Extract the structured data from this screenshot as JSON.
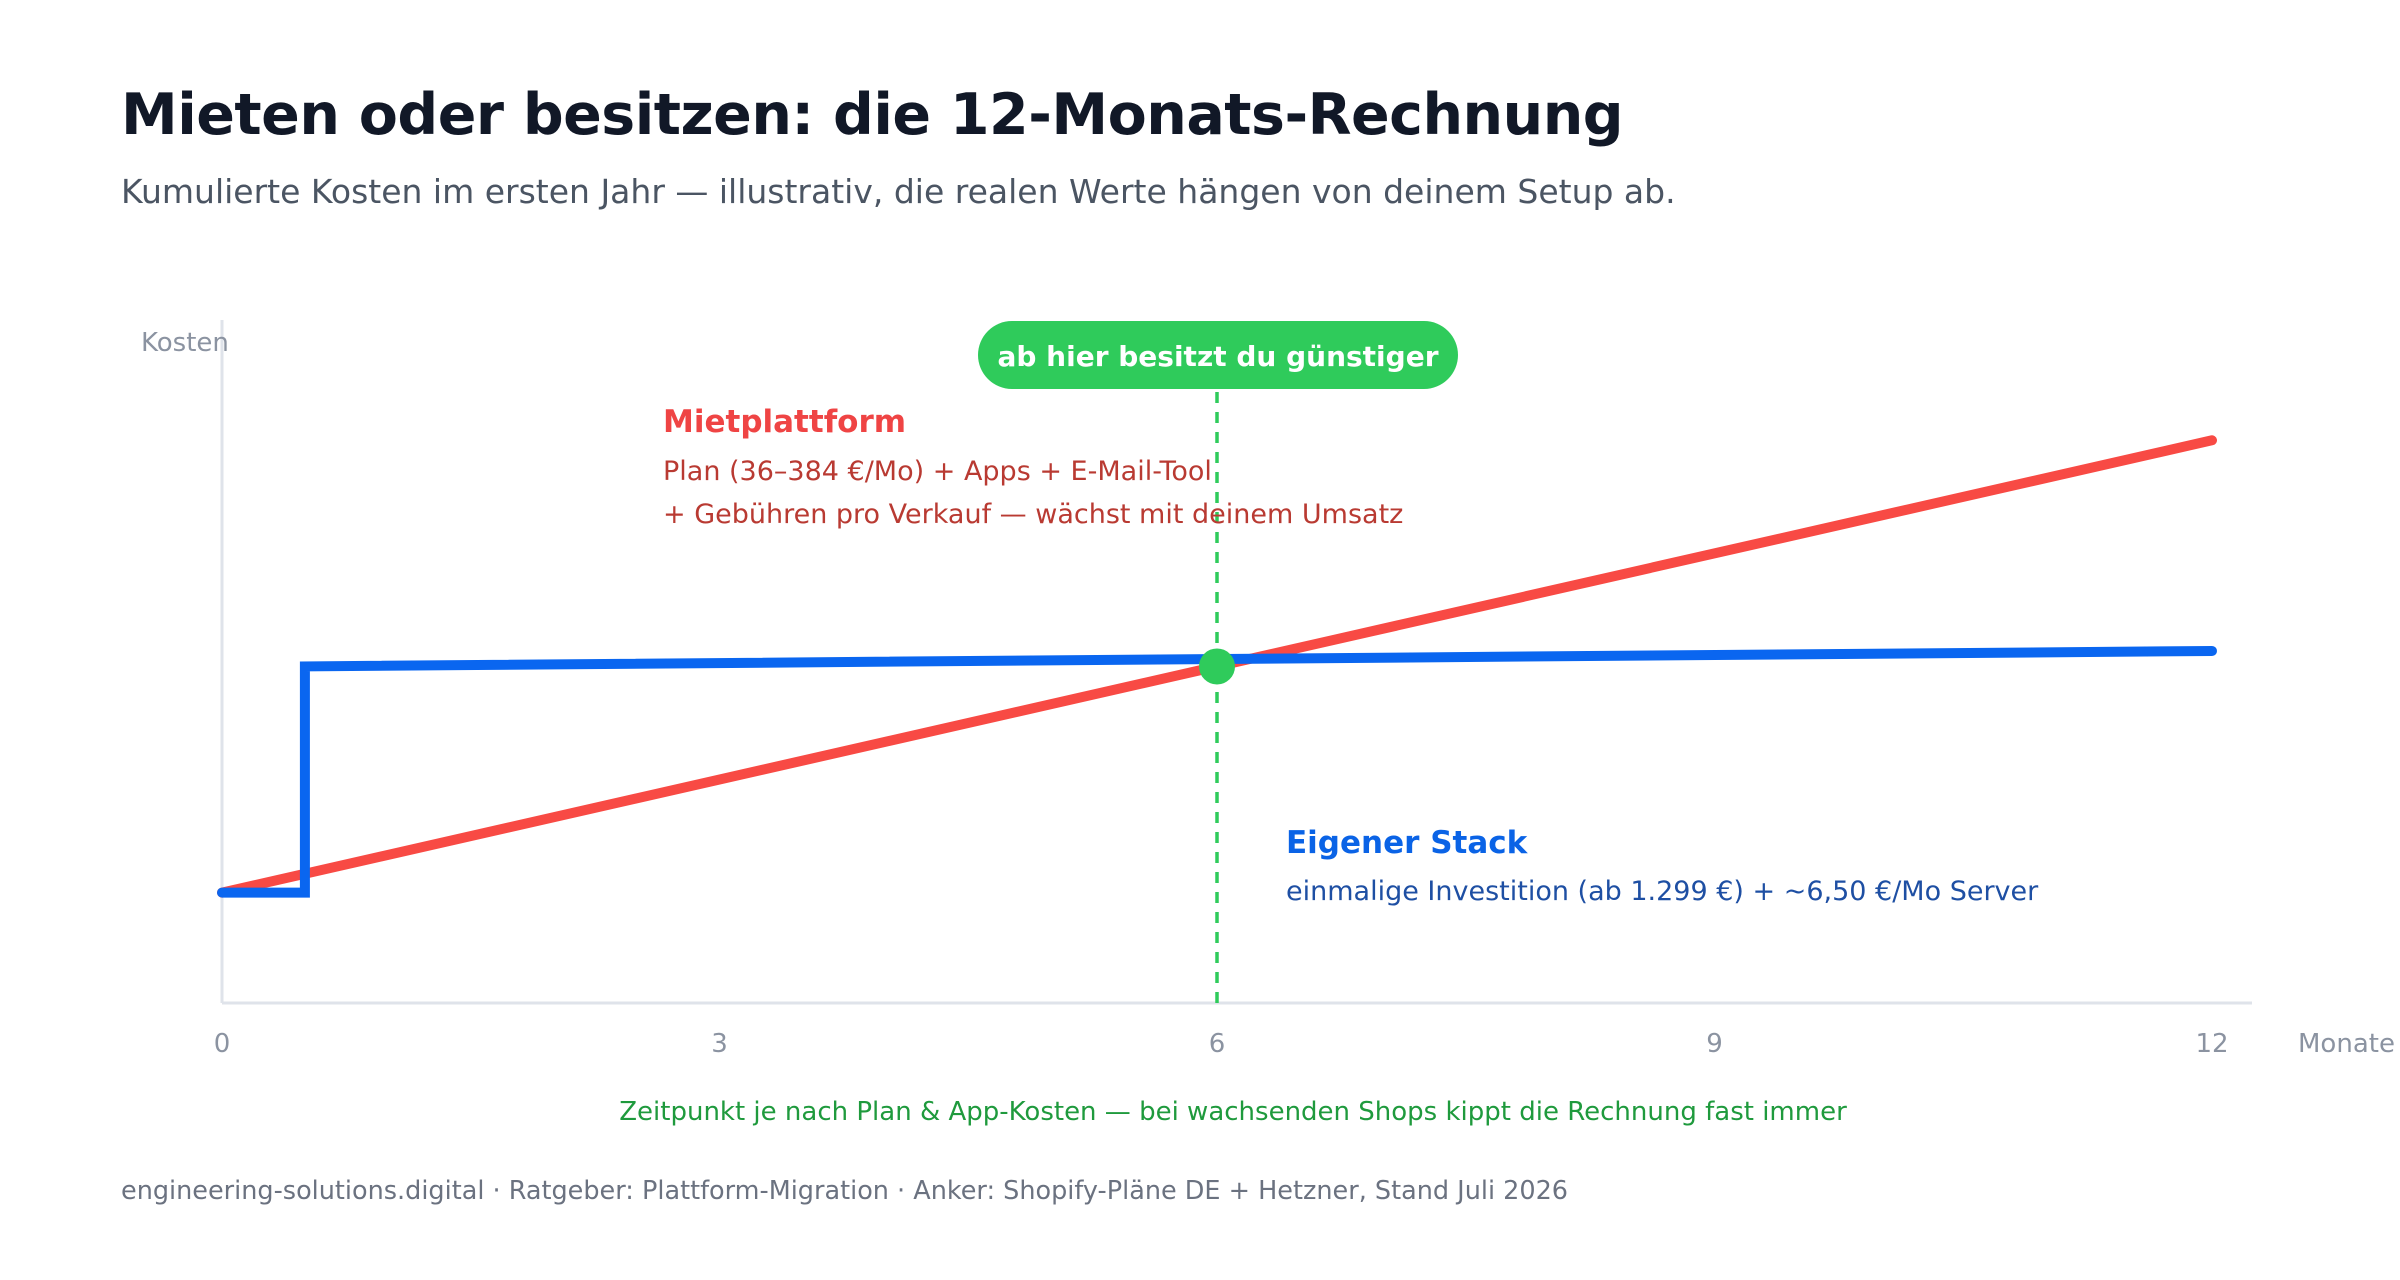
{
  "header": {
    "title": "Mieten oder besitzen: die 12-Monats-Rechnung",
    "subtitle": "Kumulierte Kosten im ersten Jahr — illustrativ, die realen Werte hängen von deinem Setup ab."
  },
  "footer": {
    "text": "engineering-solutions.digital · Ratgeber: Plattform-Migration · Anker: Shopify-Pläne DE + Hetzner, Stand Juli 2026"
  },
  "colors": {
    "rent": "#f84a44",
    "own": "#0a66f0",
    "breakeven": "#2fcb5b",
    "rent_label": "#ef4444",
    "rent_desc": "#b93a32",
    "own_label": "#0a63e6",
    "own_desc": "#1e4fa3",
    "note": "#1f9a3d",
    "axis": "#dfe3ea",
    "axis_text": "#8b93a1"
  },
  "chart_data": {
    "type": "line",
    "ylabel": "Kosten",
    "xlabel": "Monate",
    "xlim": [
      0,
      12
    ],
    "ylim": [
      0,
      100
    ],
    "x_ticks": [
      "0",
      "3",
      "6",
      "9",
      "12"
    ],
    "y_ticks_shown": false,
    "grid": false,
    "series": [
      {
        "name": "Mietplattform",
        "key": "rent",
        "description_lines": [
          "Plan (36–384 €/Mo) + Apps + E-Mail-Tool",
          "+ Gebühren pro Verkauf — wächst mit deinem Umsatz"
        ],
        "points": [
          [
            0,
            10
          ],
          [
            12,
            98
          ]
        ]
      },
      {
        "name": "Eigener Stack",
        "key": "own",
        "description_lines": [
          "einmalige Investition (ab 1.299 €) + ~6,50 €/Mo Server"
        ],
        "points": [
          [
            0,
            10
          ],
          [
            0.5,
            10
          ],
          [
            0.5,
            54
          ],
          [
            12,
            57
          ]
        ]
      }
    ],
    "breakeven": {
      "x": 6,
      "y": 54,
      "badge": "ab hier besitzt du günstiger",
      "note": "Zeitpunkt je nach Plan & App-Kosten — bei wachsenden Shops kippt die Rechnung fast immer"
    }
  }
}
